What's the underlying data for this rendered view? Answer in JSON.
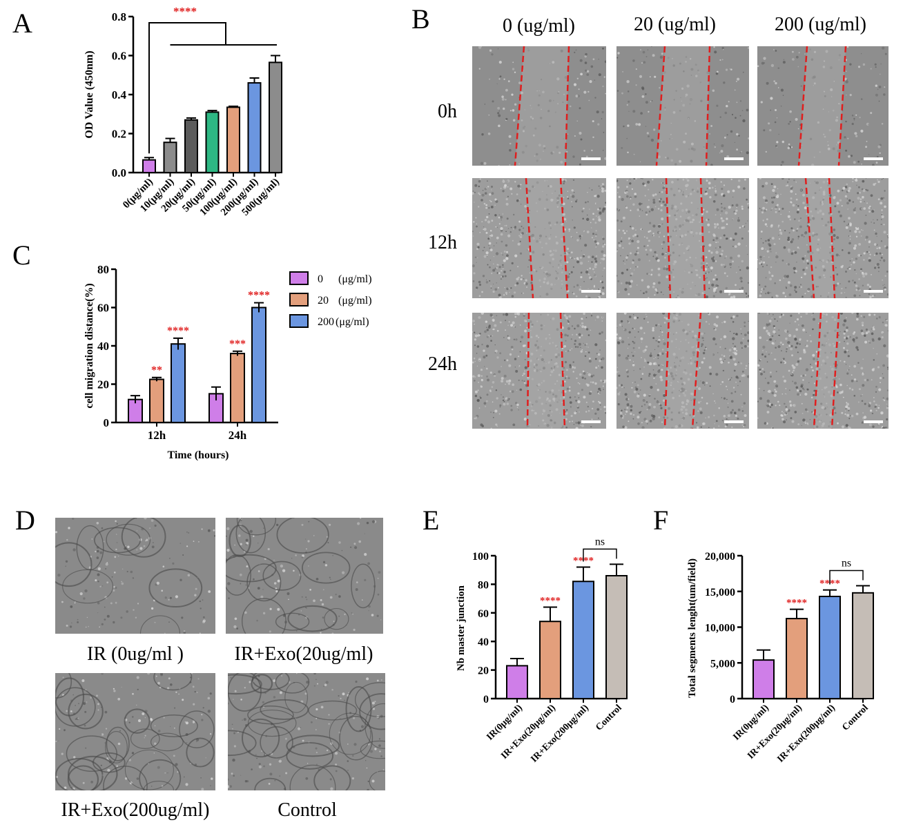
{
  "panel_letters": {
    "a": "A",
    "b": "B",
    "c": "C",
    "d": "D",
    "e": "E",
    "f": "F"
  },
  "colors": {
    "pink": "#cf7ee8",
    "grey": "#8c8c8c",
    "dark_grey": "#5c5c5c",
    "teal": "#2eb884",
    "salmon": "#e39f7c",
    "blue": "#6b96e0",
    "taupe": "#c5bdb6",
    "sig_red": "#e02020",
    "wound_red": "#e01e1e"
  },
  "chart_data": [
    {
      "id": "A",
      "type": "bar",
      "ylabel": "OD Value (450nm)",
      "ylim": [
        0,
        0.8
      ],
      "yticks": [
        "0.0",
        "0.2",
        "0.4",
        "0.6",
        "0.8"
      ],
      "ytick_values": [
        0,
        0.2,
        0.4,
        0.6,
        0.8
      ],
      "categories": [
        "0(μg/ml)",
        "10(μg/ml)",
        "20(μg/ml)",
        "50(μg/ml)",
        "100(μg/ml)",
        "200(μg/ml)",
        "500(μg/ml)"
      ],
      "values": [
        0.065,
        0.155,
        0.27,
        0.31,
        0.335,
        0.46,
        0.565
      ],
      "errors": [
        0.012,
        0.02,
        0.01,
        0.008,
        0.005,
        0.025,
        0.035
      ],
      "bar_colors": [
        "#cf7ee8",
        "#8c8c8c",
        "#5c5c5c",
        "#2eb884",
        "#e39f7c",
        "#6b96e0",
        "#8c8c8c"
      ],
      "significance": "****"
    },
    {
      "id": "C",
      "type": "bar",
      "ylabel": "cell migration distance(%)",
      "xlabel": "Time (hours)",
      "ylim": [
        0,
        80
      ],
      "yticks": [
        "0",
        "20",
        "40",
        "60",
        "80"
      ],
      "ytick_values": [
        0,
        20,
        40,
        60,
        80
      ],
      "categories": [
        "12h",
        "24h"
      ],
      "series": [
        {
          "name": "0",
          "unit": "(μg/ml)",
          "color": "#cf7ee8",
          "values": [
            12,
            15
          ],
          "errors": [
            2,
            3.5
          ],
          "sig": [
            "",
            ""
          ]
        },
        {
          "name": "20",
          "unit": "(μg/ml)",
          "color": "#e39f7c",
          "values": [
            22.5,
            36
          ],
          "errors": [
            1,
            1.2
          ],
          "sig": [
            "**",
            "***"
          ]
        },
        {
          "name": "200",
          "unit": "(μg/ml)",
          "color": "#6b96e0",
          "values": [
            41,
            60
          ],
          "errors": [
            3,
            2.5
          ],
          "sig": [
            "****",
            "****"
          ]
        }
      ],
      "legend": "top-right"
    },
    {
      "id": "E",
      "type": "bar",
      "ylabel": "Nb master junction",
      "ylim": [
        0,
        100
      ],
      "yticks": [
        "0",
        "20",
        "40",
        "60",
        "80",
        "100"
      ],
      "ytick_values": [
        0,
        20,
        40,
        60,
        80,
        100
      ],
      "categories": [
        "IR(0μg/ml)",
        "IR+Exo(20μg/ml)",
        "IR+Exo(200μg/ml)",
        "Control"
      ],
      "values": [
        23,
        54,
        82,
        86
      ],
      "errors": [
        5,
        10,
        10,
        8
      ],
      "bar_colors": [
        "#cf7ee8",
        "#e39f7c",
        "#6b96e0",
        "#c5bdb6"
      ],
      "sig": [
        "",
        "****",
        "****",
        ""
      ],
      "ns": "ns"
    },
    {
      "id": "F",
      "type": "bar",
      "ylabel": "Total segments lenght(um/field)",
      "ylim": [
        0,
        20000
      ],
      "yticks": [
        "0",
        "5,000",
        "10,000",
        "15,000",
        "20,000"
      ],
      "ytick_values": [
        0,
        5000,
        10000,
        15000,
        20000
      ],
      "categories": [
        "IR(0μg/ml)",
        "IR+Exo(20μg/ml)",
        "IR+Exo(200μg/ml)",
        "Control"
      ],
      "values": [
        5400,
        11200,
        14300,
        14800
      ],
      "errors": [
        1400,
        1300,
        900,
        1000
      ],
      "bar_colors": [
        "#cf7ee8",
        "#e39f7c",
        "#6b96e0",
        "#c5bdb6"
      ],
      "sig": [
        "",
        "****",
        "****",
        ""
      ],
      "ns": "ns"
    }
  ],
  "panel_b": {
    "columns": [
      "0 (ug/ml)",
      "20 (ug/ml)",
      "200 (ug/ml)"
    ],
    "rows": [
      "0h",
      "12h",
      "24h"
    ]
  },
  "panel_d": {
    "captions": [
      "IR (0ug/ml )",
      "IR+Exo(20ug/ml)",
      "IR+Exo(200ug/ml)",
      "Control"
    ]
  }
}
